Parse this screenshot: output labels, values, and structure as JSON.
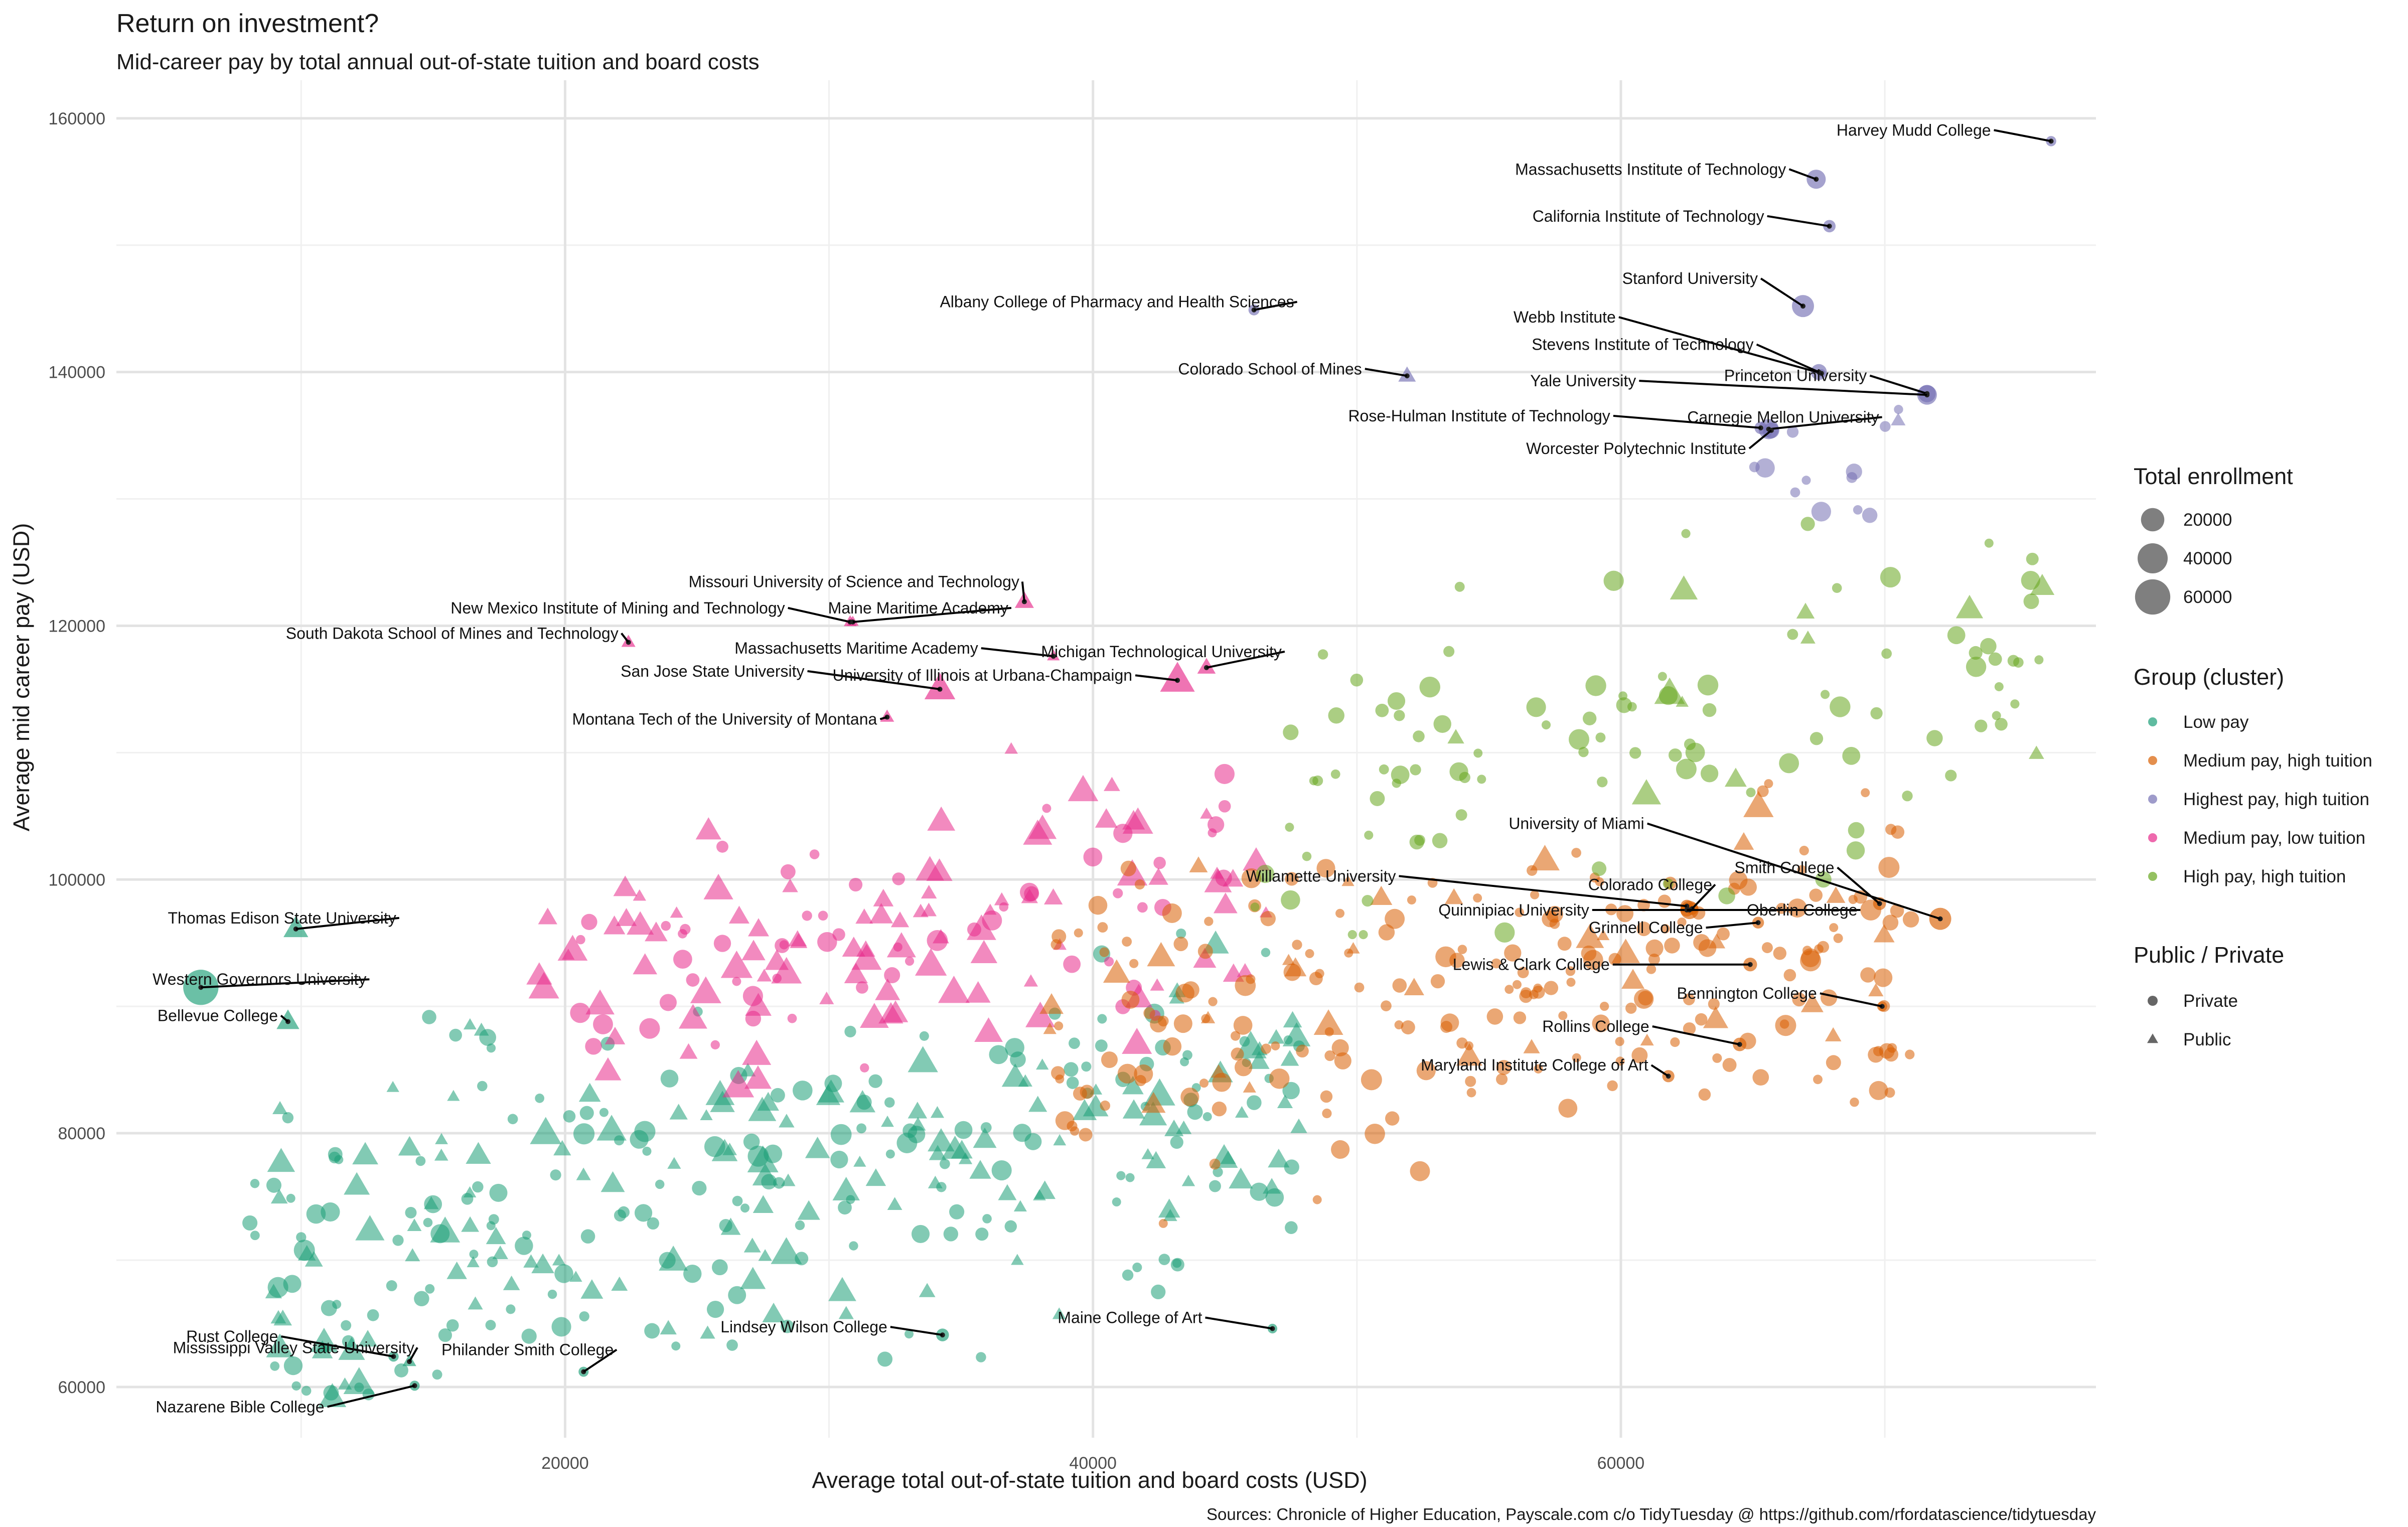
{
  "chart_data": {
    "type": "scatter",
    "title": "Return on investment?",
    "subtitle": "Mid-career pay by total annual out-of-state tuition and board costs",
    "xlabel": "Average total out-of-state tuition and board costs (USD)",
    "ylabel": "Average mid career pay (USD)",
    "caption": "Sources: Chronicle of Higher Education, Payscale.com c/o TidyTuesday @ https://github.com/rfordatascience/tidytuesday",
    "xlim": [
      3000,
      78000
    ],
    "ylim": [
      56000,
      163000
    ],
    "xticks": [
      20000,
      40000,
      60000
    ],
    "xtick_labels": [
      "20000",
      "40000",
      "60000"
    ],
    "yticks": [
      60000,
      80000,
      100000,
      120000,
      140000,
      160000
    ],
    "ytick_labels": [
      "60000",
      "80000",
      "100000",
      "120000",
      "140000",
      "160000"
    ],
    "grid": true,
    "legend_position": "right",
    "legends": {
      "size": {
        "title": "Total enrollment",
        "entries": [
          {
            "label": "20000",
            "value": 20000
          },
          {
            "label": "40000",
            "value": 40000
          },
          {
            "label": "60000",
            "value": 60000
          }
        ]
      },
      "color": {
        "title": "Group (cluster)",
        "entries": [
          {
            "key": "low",
            "label": "Low pay",
            "color": "#1b9e77"
          },
          {
            "key": "medhigh",
            "label": "Medium pay, high tuition",
            "color": "#d95f02"
          },
          {
            "key": "highest",
            "label": "Highest pay, high tuition",
            "color": "#7570b3"
          },
          {
            "key": "medlow",
            "label": "Medium pay, low tuition",
            "color": "#e7298a"
          },
          {
            "key": "high",
            "label": "High pay, high tuition",
            "color": "#66a61e"
          }
        ]
      },
      "shape": {
        "title": "Public / Private",
        "entries": [
          {
            "label": "Private",
            "shape": "circle"
          },
          {
            "label": "Public",
            "shape": "triangle"
          }
        ]
      }
    },
    "labeled_points": [
      {
        "name": "Harvey Mudd College",
        "x": 76300,
        "y": 158200,
        "group": "highest",
        "type": "private",
        "size": 800
      },
      {
        "name": "Massachusetts Institute of Technology",
        "x": 67400,
        "y": 155200,
        "group": "highest",
        "type": "private",
        "size": 11000
      },
      {
        "name": "California Institute of Technology",
        "x": 67900,
        "y": 151500,
        "group": "highest",
        "type": "private",
        "size": 2200
      },
      {
        "name": "Stanford University",
        "x": 66900,
        "y": 145200,
        "group": "highest",
        "type": "private",
        "size": 17000
      },
      {
        "name": "Albany College of Pharmacy and Health Sciences",
        "x": 46100,
        "y": 144900,
        "group": "highest",
        "type": "private",
        "size": 1200
      },
      {
        "name": "Webb Institute",
        "x": 67600,
        "y": 139900,
        "group": "highest",
        "type": "private",
        "size": 100
      },
      {
        "name": "Stevens Institute of Technology",
        "x": 67500,
        "y": 140000,
        "group": "highest",
        "type": "private",
        "size": 6000
      },
      {
        "name": "Colorado School of Mines",
        "x": 51900,
        "y": 139700,
        "group": "highest",
        "type": "public",
        "size": 6000
      },
      {
        "name": "Princeton University",
        "x": 71600,
        "y": 138300,
        "group": "highest",
        "type": "private",
        "size": 8000
      },
      {
        "name": "Yale University",
        "x": 71600,
        "y": 138200,
        "group": "highest",
        "type": "private",
        "size": 12000
      },
      {
        "name": "Carnegie Mellon University",
        "x": 65600,
        "y": 135500,
        "group": "highest",
        "type": "private",
        "size": 13000
      },
      {
        "name": "Rose-Hulman Institute of Technology",
        "x": 65300,
        "y": 135600,
        "group": "highest",
        "type": "private",
        "size": 2200
      },
      {
        "name": "Worcester Polytechnic Institute",
        "x": 65700,
        "y": 135400,
        "group": "highest",
        "type": "private",
        "size": 6000
      },
      {
        "name": "Missouri University of Science and Technology",
        "x": 37400,
        "y": 121900,
        "group": "medlow",
        "type": "public",
        "size": 8000
      },
      {
        "name": "Maine Maritime Academy",
        "x": 30900,
        "y": 120300,
        "group": "medlow",
        "type": "public",
        "size": 1000
      },
      {
        "name": "New Mexico Institute of Mining and Technology",
        "x": 30800,
        "y": 120300,
        "group": "medlow",
        "type": "public",
        "size": 1500
      },
      {
        "name": "South Dakota School of Mines and Technology",
        "x": 22400,
        "y": 118700,
        "group": "medlow",
        "type": "public",
        "size": 2500
      },
      {
        "name": "Massachusetts Maritime Academy",
        "x": 38500,
        "y": 117600,
        "group": "medlow",
        "type": "public",
        "size": 1500
      },
      {
        "name": "Michigan Technological University",
        "x": 44300,
        "y": 116700,
        "group": "medlow",
        "type": "public",
        "size": 7000
      },
      {
        "name": "San Jose State University",
        "x": 34200,
        "y": 115000,
        "group": "medlow",
        "type": "public",
        "size": 33000
      },
      {
        "name": "University of Illinois at Urbana-Champaign",
        "x": 43200,
        "y": 115700,
        "group": "medlow",
        "type": "public",
        "size": 45000
      },
      {
        "name": "Montana Tech of the University of Montana",
        "x": 32200,
        "y": 112800,
        "group": "medlow",
        "type": "public",
        "size": 2500
      },
      {
        "name": "University of Miami",
        "x": 72100,
        "y": 96900,
        "group": "medhigh",
        "type": "private",
        "size": 17000
      },
      {
        "name": "Smith College",
        "x": 69800,
        "y": 98100,
        "group": "medhigh",
        "type": "private",
        "size": 2600
      },
      {
        "name": "Willamette University",
        "x": 62500,
        "y": 97900,
        "group": "medhigh",
        "type": "private",
        "size": 2500
      },
      {
        "name": "Colorado College",
        "x": 62700,
        "y": 97700,
        "group": "medhigh",
        "type": "private",
        "size": 2100
      },
      {
        "name": "Quinnipiac University",
        "x": 62600,
        "y": 97600,
        "group": "medhigh",
        "type": "private",
        "size": 9500
      },
      {
        "name": "Oberlin College",
        "x": 62500,
        "y": 97600,
        "group": "medhigh",
        "type": "private",
        "size": 2900
      },
      {
        "name": "Grinnell College",
        "x": 65200,
        "y": 96600,
        "group": "medhigh",
        "type": "private",
        "size": 1700
      },
      {
        "name": "Lewis & Clark College",
        "x": 64900,
        "y": 93300,
        "group": "medhigh",
        "type": "private",
        "size": 3400
      },
      {
        "name": "Bennington College",
        "x": 69900,
        "y": 90000,
        "group": "medhigh",
        "type": "private",
        "size": 700
      },
      {
        "name": "Rollins College",
        "x": 64500,
        "y": 87000,
        "group": "medhigh",
        "type": "private",
        "size": 3200
      },
      {
        "name": "Maryland Institute College of Art",
        "x": 61800,
        "y": 84500,
        "group": "medhigh",
        "type": "private",
        "size": 2000
      },
      {
        "name": "Thomas Edison State University",
        "x": 9800,
        "y": 96100,
        "group": "low",
        "type": "public",
        "size": 18000
      },
      {
        "name": "Western Governors University",
        "x": 6200,
        "y": 91500,
        "group": "low",
        "type": "private",
        "size": 60000
      },
      {
        "name": "Bellevue College",
        "x": 9500,
        "y": 88800,
        "group": "low",
        "type": "public",
        "size": 14000
      },
      {
        "name": "Rust College",
        "x": 13500,
        "y": 62400,
        "group": "low",
        "type": "private",
        "size": 800
      },
      {
        "name": "Philander Smith College",
        "x": 20700,
        "y": 61200,
        "group": "low",
        "type": "private",
        "size": 700
      },
      {
        "name": "Mississippi Valley State University",
        "x": 14100,
        "y": 62000,
        "group": "low",
        "type": "public",
        "size": 2300
      },
      {
        "name": "Nazarene Bible College",
        "x": 14300,
        "y": 60100,
        "group": "low",
        "type": "private",
        "size": 700
      },
      {
        "name": "Lindsey Wilson College",
        "x": 34300,
        "y": 64100,
        "group": "low",
        "type": "private",
        "size": 2500
      },
      {
        "name": "Maine College of Art",
        "x": 46800,
        "y": 64600,
        "group": "low",
        "type": "private",
        "size": 500
      }
    ]
  }
}
